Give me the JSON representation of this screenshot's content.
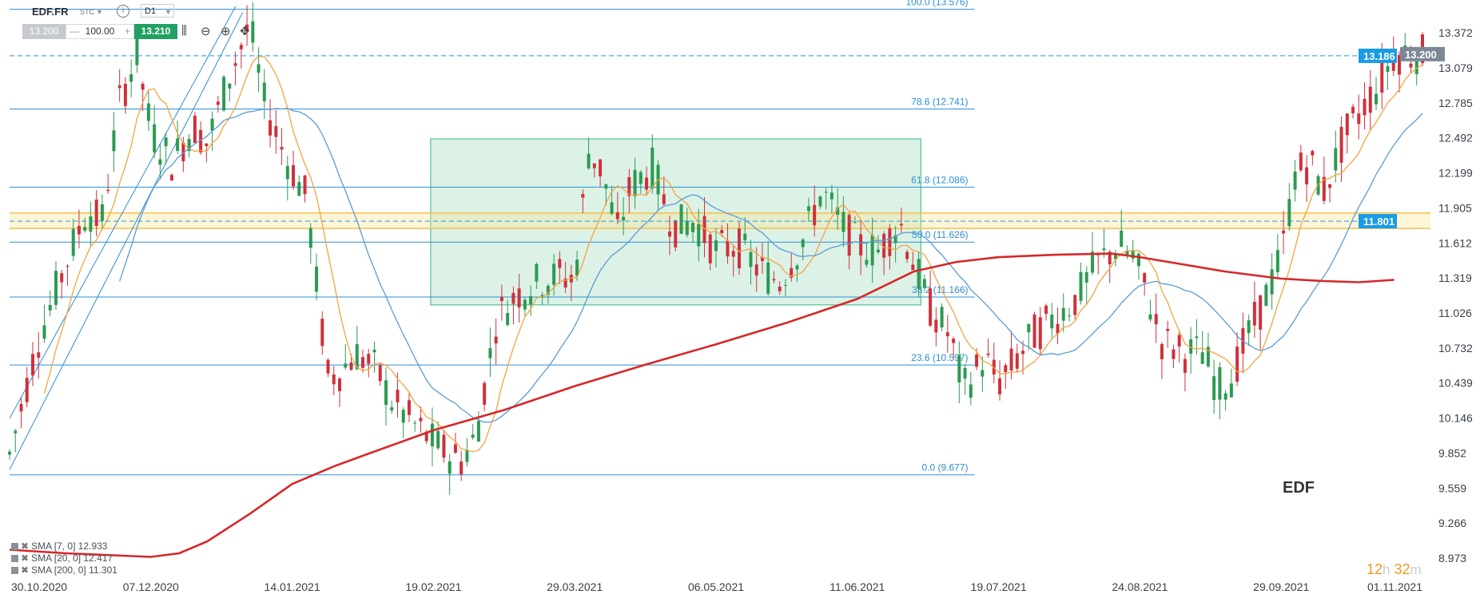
{
  "toolbar": {
    "symbol": "EDF.FR",
    "instrument_type": "STC",
    "info_icon": "info-icon",
    "timeframe": "D1",
    "bid": "13.200",
    "quantity": "100.00",
    "ask": "13.210",
    "quantity_minus": "—",
    "quantity_plus": "+",
    "tools": [
      "candles-icon",
      "zoom-out-icon",
      "zoom-in-icon",
      "move-icon"
    ]
  },
  "brand_label": "EDF",
  "timer": {
    "hours": "12",
    "h_unit": "h",
    "minutes": "32",
    "m_unit": "m"
  },
  "legend": [
    {
      "label": "SMA [7, 0] 12.933",
      "color": "#f5a340"
    },
    {
      "label": "SMA [20, 0] 12.417",
      "color": "#5b9bd5"
    },
    {
      "label": "SMA [200, 0] 11.301",
      "color": "#d62728"
    }
  ],
  "chart_data": {
    "type": "candlestick",
    "y_range": [
      8.973,
      13.6
    ],
    "y_ticks": [
      "13.372",
      "13.079",
      "12.785",
      "12.492",
      "12.199",
      "11.905",
      "11.612",
      "11.319",
      "11.026",
      "10.732",
      "10.439",
      "10.146",
      "9.852",
      "9.559",
      "9.266",
      "8.973"
    ],
    "x_labels": [
      "30.10.2020",
      "07.12.2020",
      "14.01.2021",
      "19.02.2021",
      "29.03.2021",
      "06.05.2021",
      "11.06.2021",
      "19.07.2021",
      "24.08.2021",
      "29.09.2021",
      "01.11.2021"
    ],
    "price_markers": [
      {
        "label": "13.186",
        "value": 13.186,
        "color": "#1a9be6"
      },
      {
        "label": "13.200",
        "value": 13.2,
        "color": "#7c8896"
      },
      {
        "label": "11.801",
        "value": 11.801,
        "color": "#1a9be6"
      }
    ],
    "fib_levels": [
      {
        "label": "100.0 (13.576)",
        "value": 13.576
      },
      {
        "label": "78.6 (12.741)",
        "value": 12.741
      },
      {
        "label": "61.8 (12.086)",
        "value": 12.086
      },
      {
        "label": "50.0 (11.626)",
        "value": 11.626
      },
      {
        "label": "38.2 (11.166)",
        "value": 11.166
      },
      {
        "label": "23.6 (10.597)",
        "value": 10.597
      },
      {
        "label": "0.0 (9.677)",
        "value": 9.677
      }
    ],
    "resistance_band": [
      11.74,
      11.87
    ],
    "range_box": {
      "x_start": 0.298,
      "x_end": 0.645,
      "y_low": 11.1,
      "y_high": 12.49
    },
    "price_anchors": [
      [
        0,
        9.85
      ],
      [
        0.02,
        10.8
      ],
      [
        0.04,
        11.45
      ],
      [
        0.055,
        11.9
      ],
      [
        0.065,
        11.78
      ],
      [
        0.078,
        12.8
      ],
      [
        0.09,
        13.2
      ],
      [
        0.1,
        12.55
      ],
      [
        0.115,
        12.3
      ],
      [
        0.13,
        12.6
      ],
      [
        0.14,
        12.45
      ],
      [
        0.155,
        13.0
      ],
      [
        0.17,
        13.45
      ],
      [
        0.18,
        12.8
      ],
      [
        0.195,
        12.35
      ],
      [
        0.21,
        12.0
      ],
      [
        0.218,
        11.2
      ],
      [
        0.225,
        10.5
      ],
      [
        0.235,
        10.55
      ],
      [
        0.245,
        10.7
      ],
      [
        0.26,
        10.55
      ],
      [
        0.27,
        10.3
      ],
      [
        0.29,
        10.05
      ],
      [
        0.31,
        9.85
      ],
      [
        0.32,
        9.8
      ],
      [
        0.33,
        10.0
      ],
      [
        0.345,
        11.0
      ],
      [
        0.36,
        11.2
      ],
      [
        0.375,
        11.3
      ],
      [
        0.39,
        11.35
      ],
      [
        0.4,
        11.3
      ],
      [
        0.41,
        12.4
      ],
      [
        0.42,
        12.2
      ],
      [
        0.43,
        11.7
      ],
      [
        0.44,
        12.1
      ],
      [
        0.455,
        12.25
      ],
      [
        0.47,
        11.75
      ],
      [
        0.485,
        11.8
      ],
      [
        0.5,
        11.55
      ],
      [
        0.515,
        11.6
      ],
      [
        0.53,
        11.4
      ],
      [
        0.545,
        11.3
      ],
      [
        0.56,
        11.6
      ],
      [
        0.575,
        12.05
      ],
      [
        0.59,
        11.75
      ],
      [
        0.6,
        11.6
      ],
      [
        0.615,
        11.55
      ],
      [
        0.63,
        11.8
      ],
      [
        0.64,
        11.45
      ],
      [
        0.65,
        11.1
      ],
      [
        0.665,
        10.85
      ],
      [
        0.675,
        10.4
      ],
      [
        0.69,
        10.65
      ],
      [
        0.7,
        10.45
      ],
      [
        0.71,
        10.6
      ],
      [
        0.725,
        10.85
      ],
      [
        0.74,
        11.0
      ],
      [
        0.755,
        11.15
      ],
      [
        0.77,
        11.45
      ],
      [
        0.785,
        11.6
      ],
      [
        0.795,
        11.5
      ],
      [
        0.805,
        11.2
      ],
      [
        0.815,
        10.8
      ],
      [
        0.83,
        10.7
      ],
      [
        0.845,
        10.7
      ],
      [
        0.855,
        10.4
      ],
      [
        0.865,
        10.5
      ],
      [
        0.875,
        10.8
      ],
      [
        0.885,
        11.05
      ],
      [
        0.9,
        11.5
      ],
      [
        0.91,
        12.2
      ],
      [
        0.92,
        12.3
      ],
      [
        0.93,
        12.05
      ],
      [
        0.945,
        12.5
      ],
      [
        0.96,
        12.8
      ],
      [
        0.97,
        12.95
      ],
      [
        0.98,
        13.2
      ]
    ],
    "sma200_anchors": [
      [
        0,
        9.05
      ],
      [
        0.04,
        9.02
      ],
      [
        0.08,
        9.0
      ],
      [
        0.1,
        8.99
      ],
      [
        0.12,
        9.02
      ],
      [
        0.14,
        9.12
      ],
      [
        0.17,
        9.35
      ],
      [
        0.2,
        9.6
      ],
      [
        0.23,
        9.75
      ],
      [
        0.26,
        9.88
      ],
      [
        0.3,
        10.05
      ],
      [
        0.35,
        10.22
      ],
      [
        0.4,
        10.42
      ],
      [
        0.45,
        10.6
      ],
      [
        0.5,
        10.77
      ],
      [
        0.55,
        10.95
      ],
      [
        0.6,
        11.15
      ],
      [
        0.64,
        11.38
      ],
      [
        0.67,
        11.46
      ],
      [
        0.7,
        11.5
      ],
      [
        0.74,
        11.52
      ],
      [
        0.78,
        11.53
      ],
      [
        0.8,
        11.5
      ],
      [
        0.83,
        11.44
      ],
      [
        0.86,
        11.38
      ],
      [
        0.9,
        11.32
      ],
      [
        0.93,
        11.3
      ],
      [
        0.955,
        11.29
      ],
      [
        0.98,
        11.31
      ]
    ]
  }
}
